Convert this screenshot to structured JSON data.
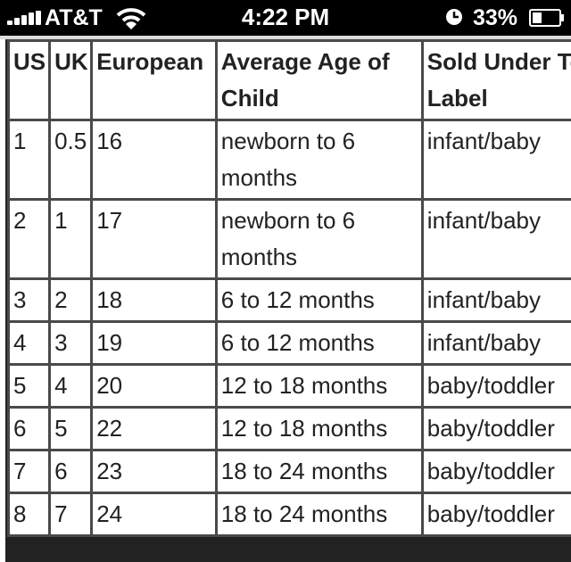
{
  "status_bar": {
    "carrier": "AT&T",
    "time": "4:22 PM",
    "battery_percent": "33%",
    "icons": [
      "signal-bars-icon",
      "wifi-icon",
      "clock-icon",
      "battery-icon"
    ]
  },
  "table": {
    "headers": [
      "US",
      "UK",
      "European",
      "Average Age of Child",
      "Sold Under Toddler Label"
    ],
    "rows": [
      [
        "1",
        "0.5",
        "16",
        "newborn to 6 months",
        "infant/baby"
      ],
      [
        "2",
        "1",
        "17",
        "newborn to 6 months",
        "infant/baby"
      ],
      [
        "3",
        "2",
        "18",
        "6 to 12 months",
        "infant/baby"
      ],
      [
        "4",
        "3",
        "19",
        "6 to 12 months",
        "infant/baby"
      ],
      [
        "5",
        "4",
        "20",
        "12 to 18 months",
        "baby/toddler"
      ],
      [
        "6",
        "5",
        "22",
        "12 to 18 months",
        "baby/toddler"
      ],
      [
        "7",
        "6",
        "23",
        "18 to 24 months",
        "baby/toddler"
      ],
      [
        "8",
        "7",
        "24",
        "18 to 24 months",
        "baby/toddler"
      ]
    ]
  }
}
